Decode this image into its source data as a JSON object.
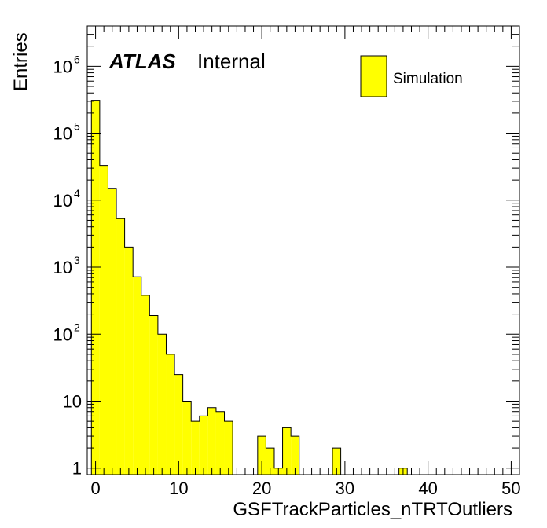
{
  "chart_data": {
    "type": "histogram",
    "style": "ATLAS ROOT histogram",
    "label": {
      "experiment": "ATLAS",
      "status": "Internal"
    },
    "xlabel": "GSFTrackParticles_nTRTOutliers",
    "ylabel": "Entries",
    "y_scale": "log",
    "xlim": [
      -1,
      51
    ],
    "ylim": [
      0.8,
      4000000
    ],
    "x_tick_labels": [
      "0",
      "10",
      "20",
      "30",
      "40",
      "50"
    ],
    "y_tick_labels": [
      {
        "value": 1,
        "base": "1",
        "exp": ""
      },
      {
        "value": 10,
        "base": "10",
        "exp": ""
      },
      {
        "value": 100,
        "base": "10",
        "exp": "2"
      },
      {
        "value": 1000,
        "base": "10",
        "exp": "3"
      },
      {
        "value": 10000,
        "base": "10",
        "exp": "4"
      },
      {
        "value": 100000,
        "base": "10",
        "exp": "5"
      },
      {
        "value": 1000000,
        "base": "10",
        "exp": "6"
      }
    ],
    "bin_width": 1,
    "bin_low_edges": [
      -0.5,
      0.5,
      1.5,
      2.5,
      3.5,
      4.5,
      5.5,
      6.5,
      7.5,
      8.5,
      9.5,
      10.5,
      11.5,
      12.5,
      13.5,
      14.5,
      15.5,
      16.5,
      17.5,
      18.5,
      19.5,
      20.5,
      21.5,
      22.5,
      23.5,
      24.5,
      25.5,
      26.5,
      27.5,
      28.5,
      29.5,
      30.5,
      31.5,
      32.5,
      33.5,
      34.5,
      35.5,
      36.5,
      37.5
    ],
    "counts": [
      310000,
      33000,
      15000,
      5300,
      2000,
      720,
      380,
      190,
      100,
      50,
      25,
      10,
      5,
      6,
      8,
      7,
      5,
      0,
      0,
      0,
      3,
      2,
      1,
      4,
      3,
      0,
      0,
      0,
      0,
      2,
      0,
      0,
      0,
      0,
      0,
      0,
      0,
      1,
      0
    ],
    "legend": {
      "entries": [
        {
          "name": "Simulation",
          "color": "#ffff00"
        }
      ],
      "position": "top-right"
    },
    "colors": {
      "fill": "#ffff00",
      "line": "#000000"
    }
  }
}
